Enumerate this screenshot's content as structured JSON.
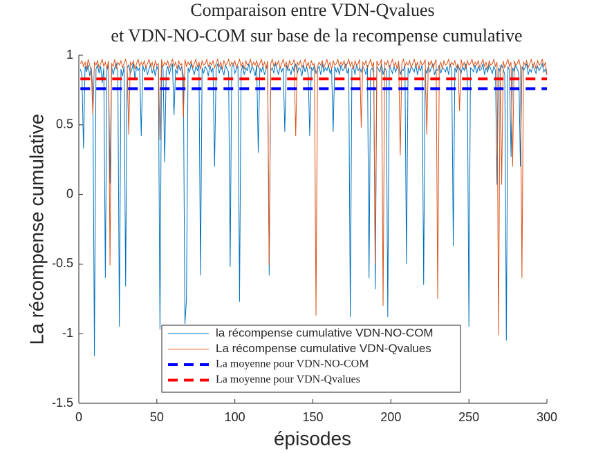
{
  "chart_data": {
    "type": "line",
    "title": [
      "Comparaison entre VDN-Qvalues",
      "et VDN-NO-COM sur base de la recompense cumulative"
    ],
    "xlabel": "épisodes",
    "ylabel": "La récompense cumulative",
    "xlim": [
      0,
      300
    ],
    "ylim": [
      -1.5,
      1
    ],
    "xticks": [
      0,
      50,
      100,
      150,
      200,
      250,
      300
    ],
    "yticks": [
      -1.5,
      -1,
      -0.5,
      0,
      0.5,
      1
    ],
    "legend_position": "south",
    "x": [
      1,
      2,
      3,
      4,
      5,
      6,
      7,
      8,
      9,
      10,
      11,
      12,
      13,
      14,
      15,
      16,
      17,
      18,
      19,
      20,
      21,
      22,
      23,
      24,
      25,
      26,
      27,
      28,
      29,
      30,
      31,
      32,
      33,
      34,
      35,
      36,
      37,
      38,
      39,
      40,
      41,
      42,
      43,
      44,
      45,
      46,
      47,
      48,
      49,
      50,
      51,
      52,
      53,
      54,
      55,
      56,
      57,
      58,
      59,
      60,
      61,
      62,
      63,
      64,
      65,
      66,
      67,
      68,
      69,
      70,
      71,
      72,
      73,
      74,
      75,
      76,
      77,
      78,
      79,
      80,
      81,
      82,
      83,
      84,
      85,
      86,
      87,
      88,
      89,
      90,
      91,
      92,
      93,
      94,
      95,
      96,
      97,
      98,
      99,
      100,
      101,
      102,
      103,
      104,
      105,
      106,
      107,
      108,
      109,
      110,
      111,
      112,
      113,
      114,
      115,
      116,
      117,
      118,
      119,
      120,
      121,
      122,
      123,
      124,
      125,
      126,
      127,
      128,
      129,
      130,
      131,
      132,
      133,
      134,
      135,
      136,
      137,
      138,
      139,
      140,
      141,
      142,
      143,
      144,
      145,
      146,
      147,
      148,
      149,
      150,
      151,
      152,
      153,
      154,
      155,
      156,
      157,
      158,
      159,
      160,
      161,
      162,
      163,
      164,
      165,
      166,
      167,
      168,
      169,
      170,
      171,
      172,
      173,
      174,
      175,
      176,
      177,
      178,
      179,
      180,
      181,
      182,
      183,
      184,
      185,
      186,
      187,
      188,
      189,
      190,
      191,
      192,
      193,
      194,
      195,
      196,
      197,
      198,
      199,
      200,
      201,
      202,
      203,
      204,
      205,
      206,
      207,
      208,
      209,
      210,
      211,
      212,
      213,
      214,
      215,
      216,
      217,
      218,
      219,
      220,
      221,
      222,
      223,
      224,
      225,
      226,
      227,
      228,
      229,
      230,
      231,
      232,
      233,
      234,
      235,
      236,
      237,
      238,
      239,
      240,
      241,
      242,
      243,
      244,
      245,
      246,
      247,
      248,
      249,
      250,
      251,
      252,
      253,
      254,
      255,
      256,
      257,
      258,
      259,
      260,
      261,
      262,
      263,
      264,
      265,
      266,
      267,
      268,
      269,
      270,
      271,
      272,
      273,
      274,
      275,
      276,
      277,
      278,
      279,
      280,
      281,
      282,
      283,
      284,
      285,
      286,
      287,
      288,
      289,
      290,
      291,
      292,
      293,
      294,
      295,
      296,
      297,
      298,
      299,
      300
    ],
    "series": [
      {
        "name": "la récompense cumulative VDN-NO-COM",
        "color": "#0072bd",
        "style": "solid",
        "values": [
          0.9,
          0.86,
          0.33,
          0.92,
          0.88,
          0.93,
          0.85,
          0.91,
          0.74,
          -1.16,
          0.9,
          0.93,
          0.87,
          0.92,
          0.8,
          0.91,
          -0.6,
          0.89,
          0.93,
          0.08,
          0.92,
          0.86,
          0.91,
          0.94,
          0.88,
          -0.95,
          0.9,
          0.85,
          0.92,
          -0.66,
          0.91,
          0.93,
          0.87,
          0.9,
          0.94,
          0.82,
          0.92,
          0.89,
          0.91,
          0.42,
          0.93,
          0.88,
          0.92,
          0.86,
          0.9,
          0.94,
          0.87,
          0.91,
          0.85,
          0.92,
          0.89,
          -0.97,
          0.93,
          0.9,
          0.23,
          0.88,
          0.92,
          0.86,
          0.91,
          0.94,
          0.57,
          0.9,
          0.87,
          0.93,
          0.89,
          0.92,
          0.85,
          -0.93,
          -0.75,
          0.91,
          0.88,
          0.94,
          0.9,
          0.86,
          0.92,
          0.89,
          0.93,
          -0.58,
          0.91,
          0.87,
          0.92,
          0.9,
          0.85,
          0.93,
          0.88,
          0.91,
          0.2,
          0.9,
          0.94,
          0.87,
          0.92,
          0.89,
          0.86,
          0.93,
          0.9,
          0.88,
          -0.52,
          0.91,
          0.94,
          0.87,
          0.9,
          0.92,
          -0.77,
          0.88,
          0.93,
          0.86,
          0.91,
          0.89,
          0.94,
          0.87,
          0.92,
          0.9,
          0.85,
          0.93,
          0.3,
          0.91,
          0.88,
          0.92,
          0.86,
          0.9,
          0.93,
          -0.58,
          0.89,
          0.91,
          0.87,
          0.94,
          0.9,
          0.86,
          0.92,
          0.88,
          0.91,
          0.45,
          0.93,
          0.89,
          0.9,
          0.86,
          0.92,
          0.88,
          0.94,
          0.87,
          0.91,
          0.9,
          0.85,
          0.93,
          0.88,
          0.92,
          0.86,
          0.42,
          0.91,
          0.89,
          0.93,
          0.87,
          0.9,
          0.92,
          0.86,
          0.94,
          0.88,
          0.91,
          0.89,
          0.93,
          0.87,
          0.9,
          0.45,
          0.92,
          0.88,
          0.91,
          0.86,
          0.93,
          0.89,
          0.9,
          0.94,
          0.87,
          0.91,
          -0.88,
          0.9,
          0.92,
          0.86,
          0.93,
          0.89,
          0.91,
          0.88,
          0.92,
          0.9,
          0.86,
          0.93,
          -0.6,
          0.89,
          0.91,
          0.87,
          -0.68,
          0.92,
          0.9,
          0.88,
          0.94,
          0.86,
          0.91,
          0.89,
          -0.88,
          0.93,
          0.9,
          0.87,
          0.92,
          0.88,
          0.91,
          0.94,
          0.86,
          0.9,
          0.89,
          0.93,
          -0.5,
          0.91,
          0.87,
          0.92,
          0.9,
          0.88,
          0.94,
          0.86,
          0.91,
          0.89,
          0.93,
          -0.65,
          0.9,
          0.87,
          0.92,
          0.88,
          0.91,
          0.94,
          0.86,
          0.9,
          0.89,
          0.93,
          0.87,
          0.91,
          0.9,
          0.88,
          0.92,
          0.86,
          0.94,
          0.89,
          -0.37,
          0.91,
          0.88,
          0.93,
          0.9,
          0.87,
          0.92,
          0.89,
          0.94,
          0.86,
          -0.95,
          0.91,
          0.9,
          0.88,
          0.93,
          0.87,
          0.92,
          0.89,
          0.9,
          0.94,
          0.86,
          0.91,
          0.88,
          0.93,
          0.9,
          0.87,
          0.92,
          0.89,
          0.07,
          0.91,
          0.88,
          0.93,
          0.9,
          0.86,
          -1.05,
          0.92,
          0.89,
          0.27,
          0.91,
          0.88,
          0.93,
          0.9,
          0.87,
          0.2,
          0.92,
          0.89,
          0.91,
          0.94,
          0.86,
          0.9,
          0.88,
          0.93,
          0.9,
          0.87,
          0.92,
          0.89,
          0.91,
          0.94,
          0.88,
          0.9,
          0.86
        ]
      },
      {
        "name": "La récompense cumulative VDN-Qvalues",
        "color": "#d95319",
        "style": "solid",
        "values": [
          0.94,
          0.96,
          0.92,
          0.95,
          0.9,
          0.97,
          0.93,
          0.88,
          0.57,
          0.95,
          0.93,
          0.96,
          0.91,
          0.94,
          0.97,
          0.92,
          0.95,
          0.9,
          0.96,
          -0.51,
          0.94,
          0.92,
          0.97,
          0.9,
          0.95,
          0.93,
          0.96,
          0.91,
          0.94,
          0.97,
          0.92,
          0.43,
          0.95,
          0.93,
          0.96,
          0.9,
          0.94,
          0.97,
          0.92,
          0.95,
          0.93,
          0.96,
          0.91,
          0.94,
          0.97,
          0.92,
          0.95,
          0.9,
          0.96,
          0.93,
          0.94,
          0.39,
          0.97,
          0.92,
          0.95,
          0.93,
          0.96,
          0.91,
          0.94,
          0.97,
          0.92,
          0.95,
          0.9,
          0.96,
          0.93,
          0.94,
          0.55,
          0.97,
          0.92,
          0.95,
          0.93,
          0.96,
          0.91,
          0.94,
          0.97,
          0.92,
          0.95,
          0.9,
          0.96,
          0.93,
          0.94,
          0.97,
          0.92,
          0.95,
          0.93,
          0.96,
          0.91,
          0.94,
          0.97,
          0.92,
          0.95,
          0.9,
          0.96,
          0.93,
          0.94,
          0.97,
          0.92,
          0.95,
          0.93,
          0.96,
          0.91,
          0.94,
          0.97,
          0.92,
          0.95,
          0.9,
          0.96,
          0.93,
          0.94,
          0.97,
          0.92,
          0.95,
          0.93,
          0.96,
          0.91,
          0.94,
          0.97,
          0.92,
          0.95,
          0.9,
          0.96,
          -0.51,
          0.94,
          0.97,
          0.92,
          0.95,
          0.93,
          0.96,
          0.91,
          0.94,
          0.97,
          0.92,
          0.95,
          0.9,
          0.96,
          0.93,
          0.94,
          0.97,
          0.42,
          0.95,
          0.93,
          0.96,
          0.91,
          0.94,
          0.97,
          0.92,
          0.95,
          0.9,
          0.96,
          0.93,
          0.94,
          -0.87,
          0.92,
          0.95,
          0.93,
          0.96,
          0.91,
          0.94,
          0.97,
          0.92,
          0.95,
          0.9,
          0.96,
          0.93,
          0.94,
          0.97,
          0.92,
          0.95,
          0.93,
          0.96,
          0.91,
          0.94,
          0.97,
          0.92,
          0.95,
          0.9,
          0.96,
          0.93,
          0.94,
          0.97,
          0.48,
          0.95,
          0.93,
          0.96,
          0.91,
          0.94,
          0.97,
          0.92,
          0.95,
          -0.5,
          0.96,
          0.93,
          0.94,
          0.97,
          -0.8,
          0.95,
          0.93,
          0.96,
          0.91,
          0.94,
          0.97,
          0.92,
          0.95,
          0.9,
          0.96,
          0.28,
          0.94,
          0.97,
          0.92,
          0.95,
          0.93,
          0.96,
          0.91,
          0.94,
          0.97,
          0.92,
          0.95,
          0.9,
          0.96,
          0.93,
          0.94,
          0.97,
          0.43,
          0.95,
          0.93,
          0.96,
          0.91,
          0.94,
          0.97,
          -0.75,
          0.92,
          0.95,
          0.9,
          0.96,
          0.93,
          0.94,
          0.97,
          0.92,
          0.95,
          0.93,
          0.96,
          0.91,
          0.94,
          0.6,
          0.97,
          0.92,
          0.95,
          0.9,
          0.96,
          0.93,
          0.94,
          0.97,
          0.92,
          0.95,
          0.93,
          0.96,
          0.91,
          0.94,
          0.97,
          0.92,
          0.95,
          0.9,
          0.96,
          0.93,
          0.94,
          0.97,
          0.92,
          0.95,
          -1.01,
          0.93,
          0.07,
          0.96,
          0.91,
          0.94,
          0.97,
          0.92,
          0.95,
          0.2,
          0.96,
          0.93,
          0.94,
          0.97,
          0.92,
          -0.6,
          0.95,
          0.93,
          0.96,
          0.91,
          0.94,
          0.97,
          0.92,
          0.95,
          0.9,
          0.96,
          0.93,
          0.94,
          0.97,
          0.92,
          0.95,
          0.86
        ]
      },
      {
        "name": "La moyenne pour VDN-NO-COM",
        "color": "#0000ff",
        "style": "dashed",
        "x": [
          1,
          300
        ],
        "values": [
          0.76,
          0.76
        ]
      },
      {
        "name": "La moyenne pour VDN-Qvalues",
        "color": "#ff0000",
        "style": "dashed",
        "x": [
          1,
          300
        ],
        "values": [
          0.83,
          0.83
        ]
      }
    ]
  }
}
